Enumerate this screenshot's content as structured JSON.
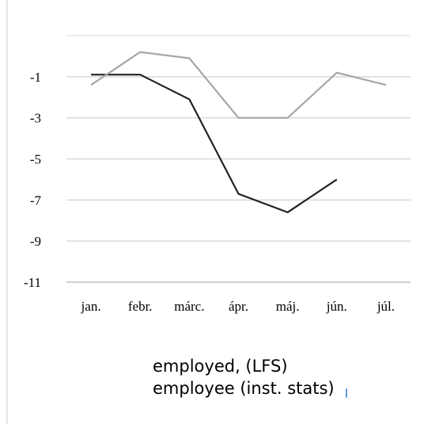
{
  "chart_data": {
    "type": "line",
    "categories": [
      "jan.",
      "febr.",
      "márc.",
      "ápr.",
      "máj.",
      "jún.",
      "júl."
    ],
    "series": [
      {
        "name": "employed, (LFS)",
        "values": [
          -0.9,
          -0.9,
          -2.1,
          -6.7,
          -7.6,
          -6.0,
          null
        ],
        "color": "#222222"
      },
      {
        "name": "employee (inst. stats)",
        "values": [
          -1.4,
          0.2,
          -0.1,
          -3.0,
          -3.0,
          -0.8,
          -1.4
        ],
        "color": "#a6a6a6"
      }
    ],
    "yticks": [
      -1,
      -3,
      -5,
      -7,
      -9,
      -11
    ],
    "ylim": [
      -11,
      1
    ],
    "grid": true,
    "legend_position": "bottom",
    "gridline_color": "#d9d9d9",
    "axis_color": "#bfbfbf"
  }
}
